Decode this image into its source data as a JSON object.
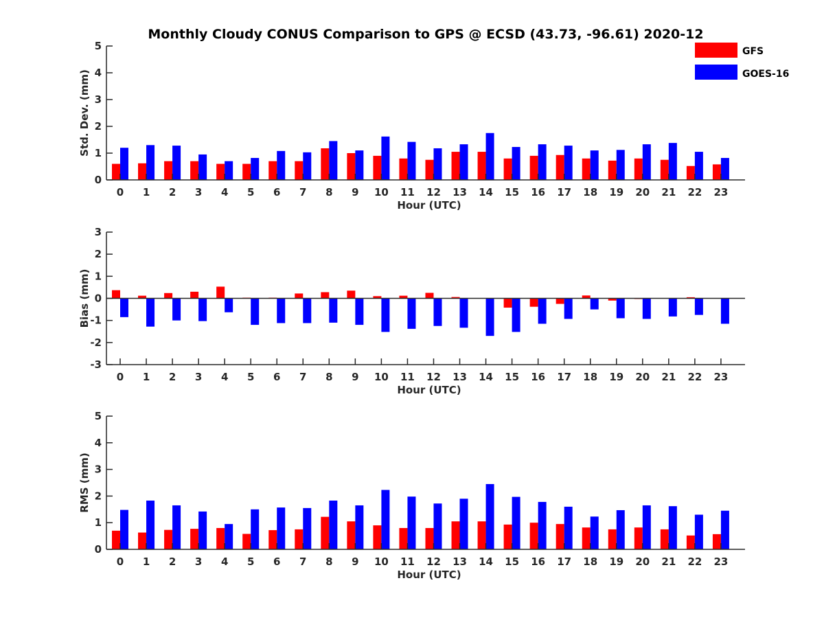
{
  "chart_data": {
    "title": "Monthly Cloudy CONUS Comparison to GPS @ ECSD (43.73, -96.61) 2020-12",
    "legend": [
      {
        "name": "GFS",
        "color": "#ff0000"
      },
      {
        "name": "GOES-16",
        "color": "#0000ff"
      }
    ],
    "legend_position": "top-right",
    "panels": [
      {
        "type": "bar",
        "xlabel": "Hour (UTC)",
        "ylabel": "Std. Dev. (mm)",
        "ylim": [
          0,
          5
        ],
        "yticks": [
          "0",
          "1",
          "2",
          "3",
          "4",
          "5"
        ],
        "categories": [
          "0",
          "1",
          "2",
          "3",
          "4",
          "5",
          "6",
          "7",
          "8",
          "9",
          "10",
          "11",
          "12",
          "13",
          "14",
          "15",
          "16",
          "17",
          "18",
          "19",
          "20",
          "21",
          "22",
          "23"
        ],
        "series": [
          {
            "name": "GFS",
            "values": [
              0.6,
              0.62,
              0.7,
              0.7,
              0.6,
              0.6,
              0.7,
              0.7,
              1.18,
              1.0,
              0.9,
              0.8,
              0.75,
              1.05,
              1.05,
              0.8,
              0.9,
              0.93,
              0.8,
              0.72,
              0.8,
              0.75,
              0.52,
              0.58
            ]
          },
          {
            "name": "GOES-16",
            "values": [
              1.2,
              1.3,
              1.28,
              0.95,
              0.7,
              0.82,
              1.08,
              1.03,
              1.45,
              1.1,
              1.62,
              1.42,
              1.18,
              1.33,
              1.75,
              1.23,
              1.33,
              1.28,
              1.1,
              1.12,
              1.33,
              1.38,
              1.05,
              0.82
            ]
          }
        ]
      },
      {
        "type": "bar",
        "xlabel": "Hour (UTC)",
        "ylabel": "Bias (mm)",
        "ylim": [
          -3,
          3
        ],
        "yticks": [
          "-3",
          "-2",
          "-1",
          "0",
          "1",
          "2",
          "3"
        ],
        "categories": [
          "0",
          "1",
          "2",
          "3",
          "4",
          "5",
          "6",
          "7",
          "8",
          "9",
          "10",
          "11",
          "12",
          "13",
          "14",
          "15",
          "16",
          "17",
          "18",
          "19",
          "20",
          "21",
          "22",
          "23"
        ],
        "series": [
          {
            "name": "GFS",
            "values": [
              0.37,
              0.12,
              0.24,
              0.3,
              0.53,
              0.03,
              0.03,
              0.22,
              0.28,
              0.35,
              0.1,
              0.12,
              0.25,
              0.06,
              0.0,
              -0.42,
              -0.38,
              -0.25,
              0.13,
              -0.1,
              -0.03,
              0.0,
              0.05,
              0.0
            ]
          },
          {
            "name": "GOES-16",
            "values": [
              -0.85,
              -1.28,
              -1.0,
              -1.03,
              -0.63,
              -1.2,
              -1.12,
              -1.12,
              -1.1,
              -1.2,
              -1.52,
              -1.38,
              -1.25,
              -1.33,
              -1.7,
              -1.52,
              -1.15,
              -0.93,
              -0.5,
              -0.9,
              -0.93,
              -0.82,
              -0.75,
              -1.15
            ]
          }
        ]
      },
      {
        "type": "bar",
        "xlabel": "Hour (UTC)",
        "ylabel": "RMS (mm)",
        "ylim": [
          0,
          5
        ],
        "yticks": [
          "0",
          "1",
          "2",
          "3",
          "4",
          "5"
        ],
        "categories": [
          "0",
          "1",
          "2",
          "3",
          "4",
          "5",
          "6",
          "7",
          "8",
          "9",
          "10",
          "11",
          "12",
          "13",
          "14",
          "15",
          "16",
          "17",
          "18",
          "19",
          "20",
          "21",
          "22",
          "23"
        ],
        "series": [
          {
            "name": "GFS",
            "values": [
              0.7,
              0.63,
              0.73,
              0.77,
              0.8,
              0.58,
              0.72,
              0.75,
              1.22,
              1.05,
              0.9,
              0.8,
              0.8,
              1.05,
              1.05,
              0.93,
              1.0,
              0.95,
              0.82,
              0.75,
              0.82,
              0.75,
              0.52,
              0.57
            ]
          },
          {
            "name": "GOES-16",
            "values": [
              1.48,
              1.83,
              1.65,
              1.42,
              0.95,
              1.5,
              1.57,
              1.55,
              1.83,
              1.65,
              2.23,
              1.98,
              1.72,
              1.9,
              2.45,
              1.97,
              1.78,
              1.6,
              1.23,
              1.47,
              1.65,
              1.62,
              1.3,
              1.45
            ]
          }
        ]
      }
    ]
  }
}
